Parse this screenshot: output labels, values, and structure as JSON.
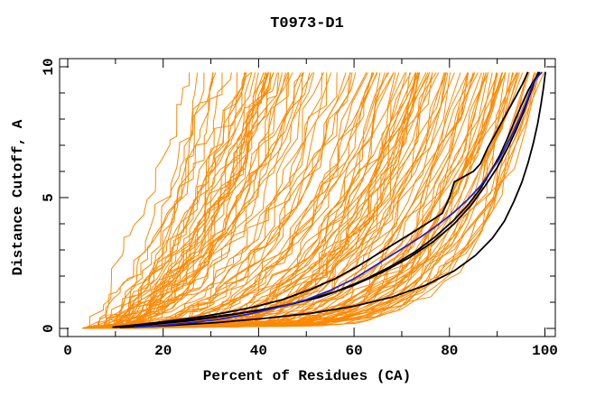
{
  "title": "T0973-D1",
  "chart_data": {
    "type": "line",
    "title": "T0973-D1",
    "xlabel": "Percent of Residues (CA)",
    "ylabel": "Distance Cutoff, A",
    "xlim": [
      0,
      100
    ],
    "ylim": [
      0,
      10
    ],
    "grid": false,
    "legend": "none",
    "background": "#ffffff",
    "axis_color": "#000000",
    "x_major_ticks": [
      0,
      20,
      40,
      60,
      80,
      100
    ],
    "x_minor_ticks": [
      10,
      30,
      50,
      70,
      90
    ],
    "x_tick_labels": [
      "0",
      "20",
      "40",
      "60",
      "80",
      "100"
    ],
    "y_major_ticks": [
      0,
      5,
      10
    ],
    "y_minor_ticks": [
      1,
      2,
      3,
      4,
      6,
      7,
      8,
      9
    ],
    "y_tick_labels": [
      "0",
      "5",
      "10"
    ],
    "ensemble": {
      "name": "prediction-model-curves",
      "color": "#ff8800",
      "count": 138,
      "seed": 97331,
      "start_percent_range": [
        3,
        7.5
      ],
      "top_percent_range": [
        25,
        100
      ],
      "max_cutoff": 9.78,
      "note": "dense fan of unlabeled orange model curves rising monotonically from lower-left origin (~5%, 0 A) to the 9.78 A top edge, top endpoints spread from ~25% to ~100%"
    },
    "highlighted_series": [
      {
        "name": "model-black-1",
        "color": "#000000",
        "points": [
          [
            9.5,
            0.05
          ],
          [
            15,
            0.15
          ],
          [
            21,
            0.28
          ],
          [
            27,
            0.42
          ],
          [
            33,
            0.6
          ],
          [
            39,
            0.82
          ],
          [
            45,
            1.1
          ],
          [
            51,
            1.5
          ],
          [
            56,
            1.9
          ],
          [
            61,
            2.4
          ],
          [
            65,
            2.85
          ],
          [
            69,
            3.3
          ],
          [
            73,
            3.75
          ],
          [
            76,
            4.1
          ],
          [
            78.5,
            4.4
          ],
          [
            80,
            5.0
          ],
          [
            81,
            5.6
          ],
          [
            83,
            5.8
          ],
          [
            85,
            6.0
          ],
          [
            86.5,
            6.3
          ],
          [
            88,
            6.9
          ],
          [
            89.5,
            7.4
          ],
          [
            91,
            7.9
          ],
          [
            92.5,
            8.4
          ],
          [
            94,
            8.9
          ],
          [
            95.3,
            9.35
          ],
          [
            96.4,
            9.78
          ]
        ]
      },
      {
        "name": "model-black-2",
        "color": "#000000",
        "points": [
          [
            10,
            0.05
          ],
          [
            17,
            0.14
          ],
          [
            25,
            0.28
          ],
          [
            33,
            0.48
          ],
          [
            41,
            0.72
          ],
          [
            49,
            1.02
          ],
          [
            56,
            1.4
          ],
          [
            62,
            1.85
          ],
          [
            68,
            2.4
          ],
          [
            73,
            2.95
          ],
          [
            77,
            3.5
          ],
          [
            81,
            4.15
          ],
          [
            84,
            4.75
          ],
          [
            86.5,
            5.35
          ],
          [
            88.5,
            5.95
          ],
          [
            90.5,
            6.6
          ],
          [
            92,
            7.2
          ],
          [
            93.5,
            7.85
          ],
          [
            95,
            8.5
          ],
          [
            96.5,
            9.1
          ],
          [
            97.8,
            9.5
          ],
          [
            98.8,
            9.78
          ]
        ]
      },
      {
        "name": "model-black-3",
        "color": "#000000",
        "points": [
          [
            11,
            0.04
          ],
          [
            21,
            0.11
          ],
          [
            31,
            0.22
          ],
          [
            41,
            0.38
          ],
          [
            51,
            0.58
          ],
          [
            60,
            0.85
          ],
          [
            68,
            1.2
          ],
          [
            75,
            1.65
          ],
          [
            81,
            2.2
          ],
          [
            85.5,
            2.8
          ],
          [
            89,
            3.45
          ],
          [
            91.5,
            4.1
          ],
          [
            93.5,
            4.85
          ],
          [
            95.2,
            5.6
          ],
          [
            96.5,
            6.35
          ],
          [
            97.6,
            7.1
          ],
          [
            98.5,
            7.85
          ],
          [
            99.2,
            8.6
          ],
          [
            99.7,
            9.2
          ],
          [
            100.1,
            9.78
          ]
        ]
      },
      {
        "name": "model-black-4",
        "color": "#000000",
        "points": [
          [
            9.8,
            0.06
          ],
          [
            18,
            0.18
          ],
          [
            27,
            0.36
          ],
          [
            36,
            0.58
          ],
          [
            45,
            0.85
          ],
          [
            53,
            1.2
          ],
          [
            60,
            1.65
          ],
          [
            66,
            2.15
          ],
          [
            71.5,
            2.7
          ],
          [
            76.5,
            3.3
          ],
          [
            81,
            4.0
          ],
          [
            84.5,
            4.7
          ],
          [
            87.5,
            5.45
          ],
          [
            90,
            6.15
          ],
          [
            92.2,
            6.9
          ],
          [
            94,
            7.6
          ],
          [
            95.6,
            8.3
          ],
          [
            97,
            9.0
          ],
          [
            98,
            9.5
          ],
          [
            98.6,
            9.78
          ]
        ]
      },
      {
        "name": "model-blue",
        "color": "#2121cd",
        "points": [
          [
            14,
            0.05
          ],
          [
            20,
            0.12
          ],
          [
            26,
            0.22
          ],
          [
            32,
            0.36
          ],
          [
            38,
            0.55
          ],
          [
            44,
            0.8
          ],
          [
            50,
            1.1
          ],
          [
            55,
            1.45
          ],
          [
            60,
            1.9
          ],
          [
            64,
            2.35
          ],
          [
            67,
            2.7
          ],
          [
            70.5,
            3.1
          ],
          [
            74,
            3.5
          ],
          [
            77.5,
            3.95
          ],
          [
            81,
            4.45
          ],
          [
            84,
            4.95
          ],
          [
            86.5,
            5.45
          ],
          [
            88.5,
            5.95
          ],
          [
            90.5,
            6.5
          ],
          [
            92,
            7.0
          ],
          [
            93.5,
            7.55
          ],
          [
            95,
            8.15
          ],
          [
            96.3,
            8.75
          ],
          [
            97.4,
            9.3
          ],
          [
            98.4,
            9.6
          ],
          [
            99.3,
            9.78
          ]
        ]
      }
    ]
  }
}
